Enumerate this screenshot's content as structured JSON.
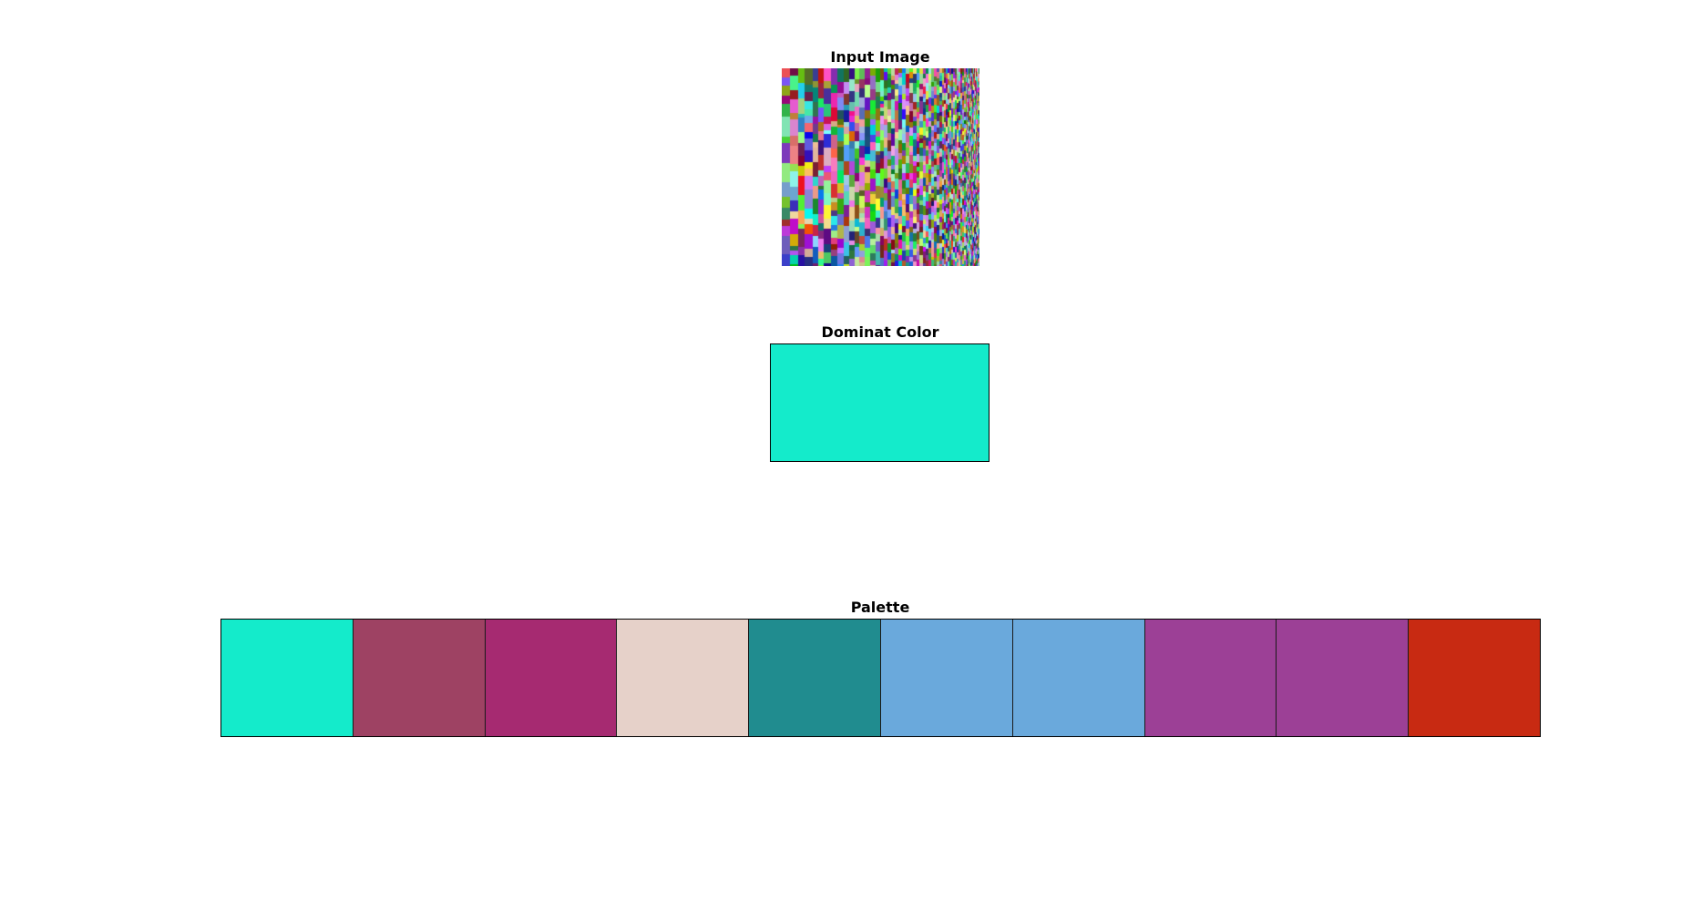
{
  "input_image": {
    "title": "Input Image"
  },
  "dominant": {
    "title": "Dominat Color",
    "color": "#14ebcb"
  },
  "palette": {
    "title": "Palette",
    "colors": [
      "#14ebcb",
      "#9e4263",
      "#a62a71",
      "#e6d1c9",
      "#208c8f",
      "#6aa9dc",
      "#6aa9dc",
      "#9c4096",
      "#9c4096",
      "#c82a12"
    ]
  }
}
